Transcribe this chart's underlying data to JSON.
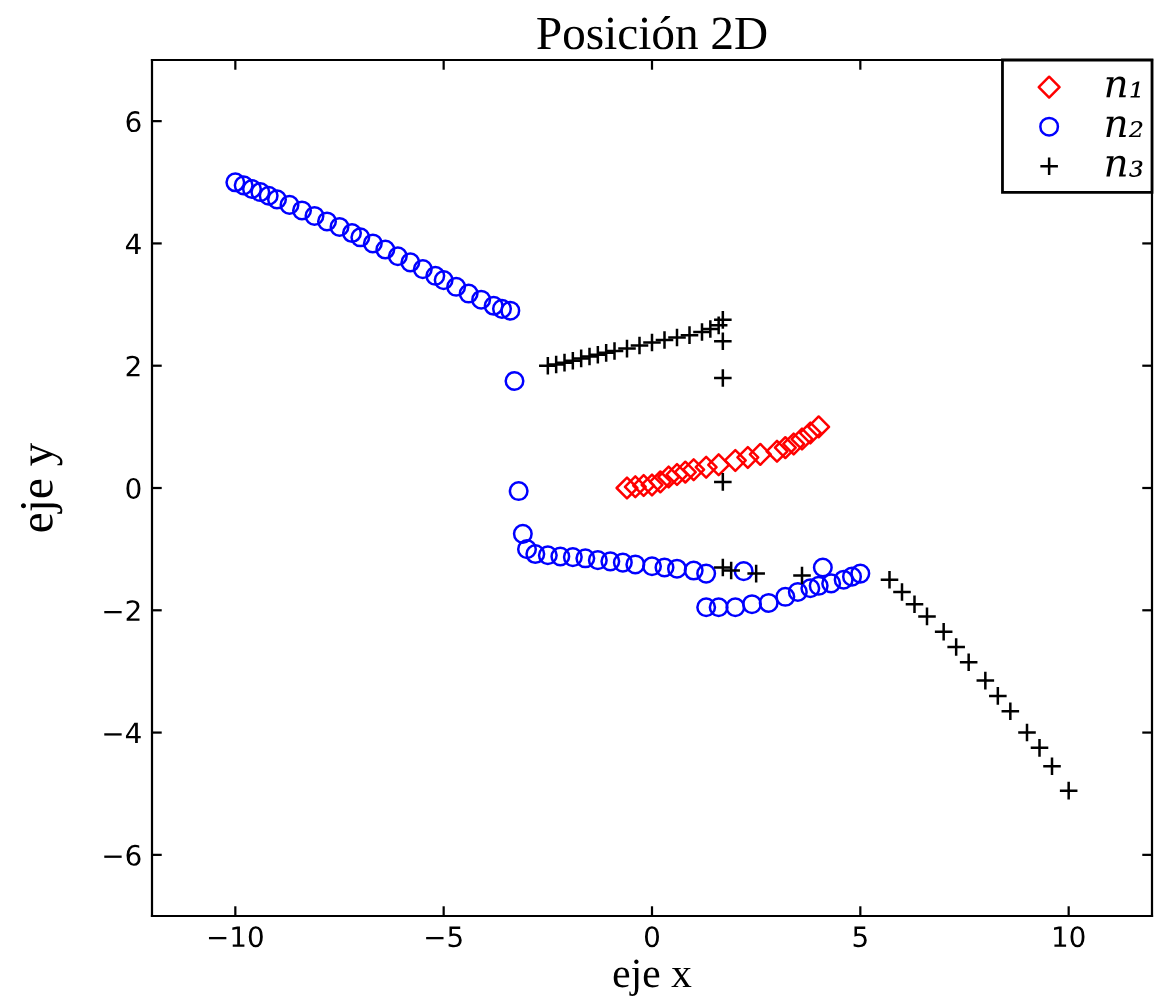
{
  "chart_data": {
    "type": "scatter",
    "title": "Posición 2D",
    "xlabel": "eje x",
    "ylabel": "eje y",
    "xlim": [
      -12,
      12
    ],
    "ylim": [
      -7,
      7
    ],
    "xticks": [
      -10,
      -5,
      0,
      5,
      10
    ],
    "yticks": [
      -6,
      -4,
      -2,
      0,
      2,
      4,
      6
    ],
    "grid": false,
    "legend": "top right",
    "series": [
      {
        "name": "n₁",
        "color": "#ff0000",
        "marker": "diamond",
        "x": [
          -0.6,
          -0.4,
          -0.2,
          0,
          0.2,
          0.4,
          0.6,
          0.8,
          1,
          1.3,
          1.6,
          2,
          2.3,
          2.6,
          3,
          3.2,
          3.4,
          3.6,
          3.8,
          4
        ],
        "values": [
          0,
          0.02,
          0.04,
          0.05,
          0.1,
          0.18,
          0.22,
          0.26,
          0.3,
          0.34,
          0.38,
          0.45,
          0.5,
          0.55,
          0.6,
          0.66,
          0.72,
          0.8,
          0.9,
          1.0
        ]
      },
      {
        "name": "n₂",
        "color": "#0000ff",
        "marker": "circle",
        "x": [
          -10,
          -9.8,
          -9.6,
          -9.4,
          -9.2,
          -9,
          -8.7,
          -8.4,
          -8.1,
          -7.8,
          -7.5,
          -7.2,
          -7,
          -6.7,
          -6.4,
          -6.1,
          -5.8,
          -5.5,
          -5.2,
          -5,
          -4.7,
          -4.4,
          -4.1,
          -3.8,
          -3.6,
          -3.4,
          -3.3,
          -3.2,
          -3.1,
          -3,
          -2.8,
          -2.5,
          -2.2,
          -1.9,
          -1.6,
          -1.3,
          -1,
          -0.7,
          -0.4,
          0,
          0.3,
          0.6,
          1,
          1.3,
          1.3,
          1.6,
          2,
          2.2,
          2.4,
          2.8,
          3.2,
          3.5,
          3.8,
          4,
          4.1,
          4.3,
          4.6,
          4.8,
          5
        ],
        "values": [
          5,
          4.95,
          4.89,
          4.84,
          4.78,
          4.72,
          4.63,
          4.54,
          4.45,
          4.36,
          4.27,
          4.17,
          4.1,
          4,
          3.9,
          3.79,
          3.69,
          3.58,
          3.47,
          3.4,
          3.29,
          3.18,
          3.08,
          2.98,
          2.93,
          2.9,
          1.75,
          -0.05,
          -0.75,
          -1.0,
          -1.08,
          -1.1,
          -1.12,
          -1.13,
          -1.15,
          -1.18,
          -1.2,
          -1.22,
          -1.25,
          -1.28,
          -1.3,
          -1.32,
          -1.35,
          -1.4,
          -1.95,
          -1.95,
          -1.95,
          -1.36,
          -1.9,
          -1.88,
          -1.78,
          -1.7,
          -1.64,
          -1.6,
          -1.3,
          -1.56,
          -1.5,
          -1.45,
          -1.4
        ]
      },
      {
        "name": "n₃",
        "color": "#000000",
        "marker": "cross",
        "x": [
          -2.5,
          -2.3,
          -2.1,
          -1.9,
          -1.7,
          -1.5,
          -1.3,
          -1.1,
          -0.9,
          -0.6,
          -0.3,
          0,
          0.3,
          0.6,
          0.9,
          1.2,
          1.4,
          1.6,
          1.7,
          1.7,
          1.7,
          1.7,
          1.7,
          1.9,
          2.5,
          3.6,
          5.7,
          6.0,
          6.3,
          6.6,
          7,
          7.3,
          7.6,
          8,
          8.3,
          8.6,
          9,
          9.3,
          9.6,
          10
        ],
        "values": [
          2.0,
          2.02,
          2.05,
          2.08,
          2.12,
          2.15,
          2.18,
          2.21,
          2.24,
          2.28,
          2.33,
          2.38,
          2.42,
          2.46,
          2.5,
          2.55,
          2.6,
          2.66,
          2.75,
          2.4,
          1.8,
          0.1,
          -1.3,
          -1.35,
          -1.4,
          -1.43,
          -1.5,
          -1.7,
          -1.9,
          -2.1,
          -2.35,
          -2.6,
          -2.85,
          -3.15,
          -3.4,
          -3.65,
          -4.0,
          -4.25,
          -4.55,
          -4.95
        ]
      }
    ]
  }
}
